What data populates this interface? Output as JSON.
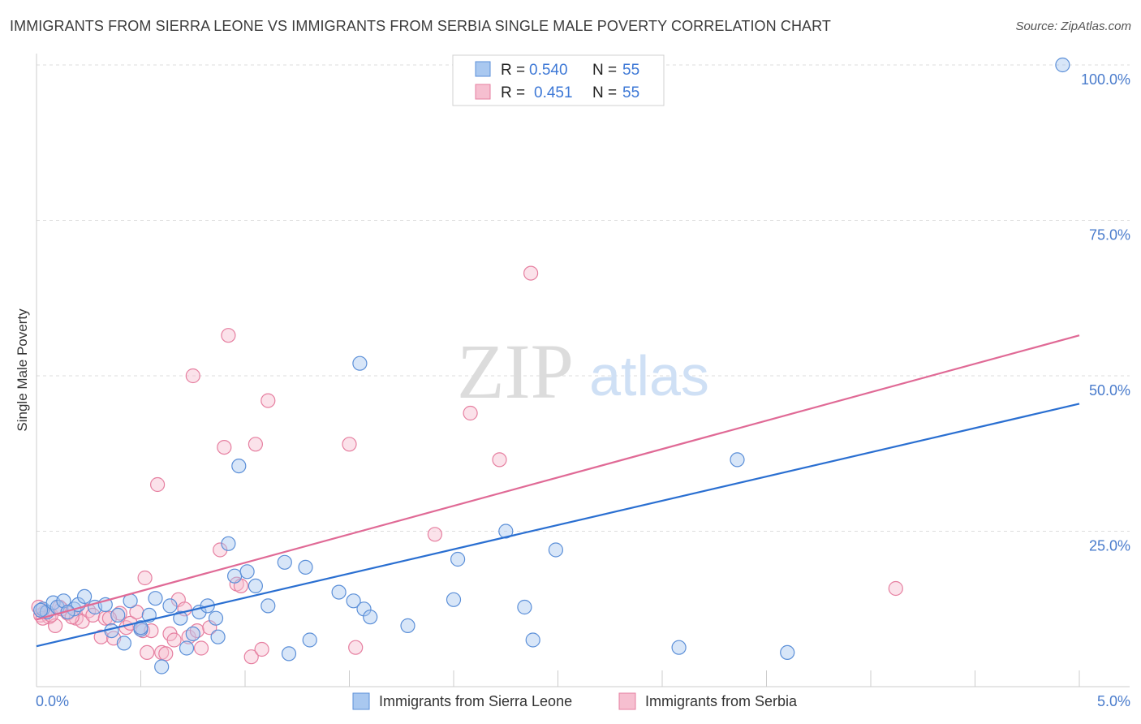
{
  "title": "IMMIGRANTS FROM SIERRA LEONE VS IMMIGRANTS FROM SERBIA SINGLE MALE POVERTY CORRELATION CHART",
  "source": "Source: ZipAtlas.com",
  "watermark": {
    "zip": "ZIP",
    "atlas": "atlas"
  },
  "colors": {
    "blue_fill": "#a9c8f0",
    "blue_stroke": "#5b8fd8",
    "blue_line": "#2a6fd1",
    "pink_fill": "#f6bfd0",
    "pink_stroke": "#e67fa0",
    "pink_line": "#e06a96",
    "tick_text": "#4a7ccc",
    "grid": "#dddddd"
  },
  "stats_box": [
    {
      "swatch": "blue",
      "r_label": "R =",
      "r_value": "0.540",
      "n_label": "N =",
      "n_value": "55"
    },
    {
      "swatch": "pink",
      "r_label": "R =",
      "r_value": "0.451",
      "n_label": "N =",
      "n_value": "55"
    }
  ],
  "chart_data": {
    "type": "scatter",
    "title": "IMMIGRANTS FROM SIERRA LEONE VS IMMIGRANTS FROM SERBIA SINGLE MALE POVERTY CORRELATION CHART",
    "xlabel": "",
    "ylabel": "Single Male Poverty",
    "xlim": [
      0,
      5
    ],
    "ylim": [
      0,
      100
    ],
    "x_tick_labels": [
      {
        "value": 0,
        "label": "0.0%"
      },
      {
        "value": 5,
        "label": "5.0%"
      }
    ],
    "y_tick_labels": [
      {
        "value": 25,
        "label": "25.0%"
      },
      {
        "value": 50,
        "label": "50.0%"
      },
      {
        "value": 75,
        "label": "75.0%"
      },
      {
        "value": 100,
        "label": "100.0%"
      }
    ],
    "legend": [
      "Immigrants from Sierra Leone",
      "Immigrants from Serbia"
    ],
    "series": [
      {
        "name": "Immigrants from Sierra Leone",
        "color": "blue",
        "trend": {
          "x": [
            0,
            5
          ],
          "y": [
            6.5,
            45.5
          ]
        },
        "points": [
          [
            0.03,
            12.5
          ],
          [
            0.05,
            12.0
          ],
          [
            0.08,
            13.5
          ],
          [
            0.1,
            12.8
          ],
          [
            0.13,
            13.8
          ],
          [
            0.18,
            12.5
          ],
          [
            0.2,
            13.2
          ],
          [
            0.23,
            14.5
          ],
          [
            0.28,
            12.8
          ],
          [
            0.33,
            13.2
          ],
          [
            0.36,
            9.0
          ],
          [
            0.39,
            11.5
          ],
          [
            0.42,
            7.0
          ],
          [
            0.45,
            13.8
          ],
          [
            0.5,
            9.2
          ],
          [
            0.54,
            11.5
          ],
          [
            0.57,
            14.2
          ],
          [
            0.6,
            3.2
          ],
          [
            0.64,
            13.0
          ],
          [
            0.69,
            11.0
          ],
          [
            0.72,
            6.2
          ],
          [
            0.75,
            8.5
          ],
          [
            0.78,
            12.0
          ],
          [
            0.82,
            13.0
          ],
          [
            0.86,
            11.0
          ],
          [
            0.87,
            8.0
          ],
          [
            0.92,
            23.0
          ],
          [
            0.95,
            17.8
          ],
          [
            0.97,
            35.5
          ],
          [
            1.01,
            18.5
          ],
          [
            1.05,
            16.2
          ],
          [
            1.11,
            13.0
          ],
          [
            1.19,
            20.0
          ],
          [
            1.21,
            5.3
          ],
          [
            1.29,
            19.2
          ],
          [
            1.31,
            7.5
          ],
          [
            1.45,
            15.2
          ],
          [
            1.52,
            13.8
          ],
          [
            1.55,
            52.0
          ],
          [
            1.57,
            12.5
          ],
          [
            1.6,
            11.2
          ],
          [
            1.78,
            9.8
          ],
          [
            2.0,
            14.0
          ],
          [
            2.02,
            20.5
          ],
          [
            2.25,
            25.0
          ],
          [
            2.34,
            12.8
          ],
          [
            2.38,
            7.5
          ],
          [
            2.49,
            22.0
          ],
          [
            3.08,
            6.3
          ],
          [
            3.36,
            36.5
          ],
          [
            3.6,
            5.5
          ],
          [
            4.92,
            100.0
          ],
          [
            0.02,
            12.3
          ],
          [
            0.15,
            12.0
          ],
          [
            0.5,
            9.5
          ]
        ]
      },
      {
        "name": "Immigrants from Serbia",
        "color": "pink",
        "trend": {
          "x": [
            0,
            5
          ],
          "y": [
            10.8,
            56.5
          ]
        },
        "points": [
          [
            0.02,
            11.5
          ],
          [
            0.04,
            12.0
          ],
          [
            0.06,
            11.2
          ],
          [
            0.09,
            9.8
          ],
          [
            0.12,
            12.5
          ],
          [
            0.15,
            11.8
          ],
          [
            0.19,
            11.0
          ],
          [
            0.22,
            10.5
          ],
          [
            0.25,
            12.2
          ],
          [
            0.27,
            11.5
          ],
          [
            0.31,
            8.0
          ],
          [
            0.33,
            11.0
          ],
          [
            0.37,
            7.8
          ],
          [
            0.4,
            11.8
          ],
          [
            0.43,
            9.5
          ],
          [
            0.45,
            10.2
          ],
          [
            0.48,
            12.0
          ],
          [
            0.51,
            9.0
          ],
          [
            0.52,
            17.5
          ],
          [
            0.53,
            5.5
          ],
          [
            0.58,
            32.5
          ],
          [
            0.6,
            5.5
          ],
          [
            0.62,
            5.3
          ],
          [
            0.64,
            8.5
          ],
          [
            0.66,
            7.5
          ],
          [
            0.68,
            14.0
          ],
          [
            0.71,
            12.5
          ],
          [
            0.73,
            8.0
          ],
          [
            0.75,
            50.0
          ],
          [
            0.77,
            9.0
          ],
          [
            0.79,
            6.2
          ],
          [
            0.83,
            9.5
          ],
          [
            0.88,
            22.0
          ],
          [
            0.9,
            38.5
          ],
          [
            0.92,
            56.5
          ],
          [
            0.96,
            16.5
          ],
          [
            0.98,
            16.2
          ],
          [
            1.03,
            4.8
          ],
          [
            1.05,
            39.0
          ],
          [
            1.08,
            6.0
          ],
          [
            1.11,
            46.0
          ],
          [
            1.5,
            39.0
          ],
          [
            1.53,
            6.3
          ],
          [
            2.08,
            44.0
          ],
          [
            2.22,
            36.5
          ],
          [
            2.37,
            66.5
          ],
          [
            1.91,
            24.5
          ],
          [
            4.12,
            15.8
          ],
          [
            0.01,
            12.8
          ],
          [
            0.03,
            11.0
          ],
          [
            0.07,
            11.5
          ],
          [
            0.11,
            12.8
          ],
          [
            0.17,
            11.2
          ],
          [
            0.35,
            11.0
          ],
          [
            0.55,
            9.0
          ]
        ]
      }
    ]
  }
}
